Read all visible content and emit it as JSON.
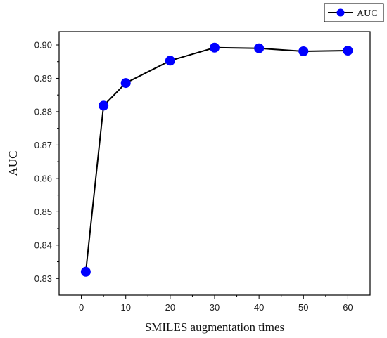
{
  "chart_data": {
    "type": "line",
    "xlabel": "SMILES augmentation times",
    "ylabel": "AUC",
    "xlim": [
      -5,
      65
    ],
    "ylim": [
      0.825,
      0.904
    ],
    "xticks": [
      0,
      10,
      20,
      30,
      40,
      50,
      60
    ],
    "yticks": [
      0.83,
      0.84,
      0.85,
      0.86,
      0.87,
      0.88,
      0.89,
      0.9
    ],
    "ytick_labels": [
      "0.83",
      "0.84",
      "0.85",
      "0.86",
      "0.87",
      "0.88",
      "0.89",
      "0.90"
    ],
    "grid": false,
    "legend_position": "top-right",
    "series": [
      {
        "name": "AUC",
        "color": "#0000ff",
        "line_color": "#000000",
        "x": [
          1,
          5,
          10,
          20,
          30,
          40,
          50,
          60
        ],
        "y": [
          0.832,
          0.8818,
          0.8886,
          0.8953,
          0.8992,
          0.899,
          0.8981,
          0.8983
        ]
      }
    ]
  }
}
